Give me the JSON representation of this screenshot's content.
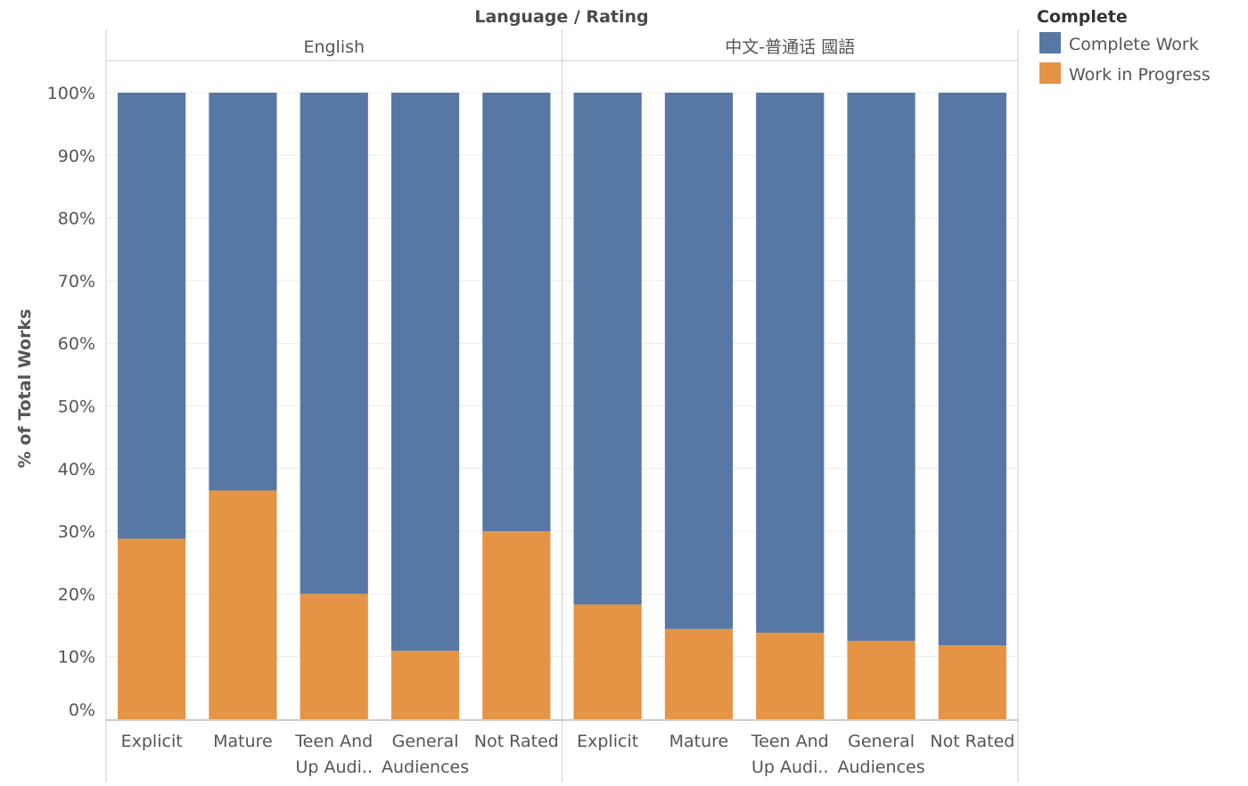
{
  "chart_data": {
    "type": "bar",
    "stacked": true,
    "column_header": "Language / Rating",
    "ylabel": "% of Total Works",
    "ylim": [
      0,
      100
    ],
    "yticks": [
      "0%",
      "10%",
      "20%",
      "30%",
      "40%",
      "50%",
      "60%",
      "70%",
      "80%",
      "90%",
      "100%"
    ],
    "grid": true,
    "legend": {
      "title": "Complete",
      "placement": "top-right",
      "items": [
        {
          "name": "Complete Work",
          "color": "#5778a4"
        },
        {
          "name": "Work in Progress",
          "color": "#e49444"
        }
      ]
    },
    "categories": [
      "Explicit",
      "Mature",
      "Teen And Up Audi..",
      "General Audiences",
      "Not Rated"
    ],
    "category_labels": [
      [
        "Explicit"
      ],
      [
        "Mature"
      ],
      [
        "Teen And",
        "Up Audi.."
      ],
      [
        "General",
        "Audiences"
      ],
      [
        "Not Rated"
      ]
    ],
    "panels": [
      {
        "name": "English",
        "series": [
          {
            "name": "Work in Progress",
            "values": [
              28.8,
              36.5,
              20.0,
              10.9,
              30.0
            ]
          },
          {
            "name": "Complete Work",
            "values": [
              71.2,
              63.5,
              80.0,
              89.1,
              70.0
            ]
          }
        ]
      },
      {
        "name": "中文-普通话 國語",
        "series": [
          {
            "name": "Work in Progress",
            "values": [
              18.3,
              14.4,
              13.8,
              12.5,
              11.8
            ]
          },
          {
            "name": "Complete Work",
            "values": [
              81.7,
              85.6,
              86.2,
              87.5,
              88.2
            ]
          }
        ]
      }
    ]
  }
}
